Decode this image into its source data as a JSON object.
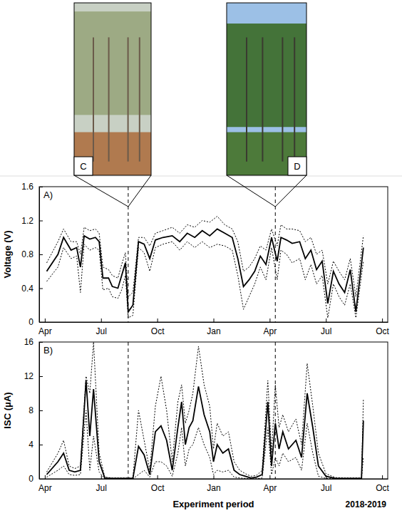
{
  "photos": [
    {
      "label": "C"
    },
    {
      "label": "D"
    }
  ],
  "chart_data": [
    {
      "type": "line",
      "title": "A)",
      "ylabel": "Voltage (V)",
      "xlim": [
        -0.3,
        18.3
      ],
      "xticks": [
        {
          "value": 0,
          "label": "Apr"
        },
        {
          "value": 3,
          "label": "Jul"
        },
        {
          "value": 6,
          "label": "Oct"
        },
        {
          "value": 9,
          "label": "Jan"
        },
        {
          "value": 12,
          "label": "Apr"
        },
        {
          "value": 15,
          "label": "Jul"
        },
        {
          "value": 18,
          "label": "Oct"
        }
      ],
      "ylim": [
        0,
        1.6
      ],
      "yticks": [
        0,
        0.4,
        0.8,
        1.2,
        1.6
      ],
      "vlines": [
        4.45,
        12.3
      ],
      "x": [
        0.1,
        0.7,
        1.0,
        1.4,
        1.7,
        1.9,
        2.1,
        2.4,
        2.7,
        2.9,
        3.1,
        3.4,
        3.6,
        3.9,
        4.1,
        4.3,
        4.45,
        4.7,
        5.0,
        5.3,
        5.6,
        5.9,
        6.3,
        6.8,
        7.2,
        7.6,
        8.0,
        8.4,
        8.8,
        9.2,
        9.6,
        10.0,
        10.3,
        10.6,
        10.9,
        11.2,
        11.5,
        11.8,
        12.1,
        12.4,
        12.6,
        12.9,
        13.2,
        13.6,
        13.9,
        14.2,
        14.5,
        14.8,
        15.1,
        15.4,
        15.7,
        16.0,
        16.3,
        16.6,
        17.0
      ],
      "series": [
        {
          "color": "#000000",
          "line_style": "solid",
          "values": [
            0.6,
            0.8,
            1.0,
            0.85,
            0.88,
            0.65,
            1.02,
            0.98,
            1.0,
            0.95,
            0.52,
            0.52,
            0.42,
            0.4,
            0.55,
            0.7,
            0.12,
            0.2,
            0.95,
            0.92,
            0.75,
            0.97,
            1.0,
            1.02,
            0.95,
            1.05,
            1.0,
            1.08,
            1.02,
            1.1,
            1.05,
            1.0,
            0.75,
            0.42,
            0.5,
            0.6,
            0.78,
            0.68,
            1.0,
            0.72,
            1.0,
            0.97,
            0.93,
            0.95,
            0.75,
            0.85,
            0.62,
            0.72,
            0.22,
            0.6,
            0.45,
            0.35,
            0.62,
            0.12,
            0.88
          ]
        },
        {
          "color": "#000000",
          "line_style": "dotted",
          "values": [
            0.7,
            0.95,
            1.1,
            0.95,
            0.95,
            0.8,
            1.12,
            1.08,
            1.1,
            1.05,
            0.65,
            0.62,
            0.55,
            0.52,
            0.68,
            0.82,
            0.3,
            0.35,
            1.0,
            1.0,
            0.9,
            1.05,
            1.08,
            1.12,
            1.05,
            1.15,
            1.12,
            1.2,
            1.18,
            1.25,
            1.15,
            1.1,
            0.95,
            0.6,
            0.65,
            0.75,
            0.9,
            0.85,
            1.1,
            0.9,
            1.15,
            1.1,
            1.1,
            1.08,
            0.95,
            1.0,
            0.8,
            0.85,
            0.45,
            0.72,
            0.6,
            0.5,
            0.75,
            0.3,
            1.02
          ]
        },
        {
          "color": "#000000",
          "line_style": "dotted",
          "values": [
            0.48,
            0.65,
            0.88,
            0.75,
            0.78,
            0.35,
            0.92,
            0.85,
            0.88,
            0.85,
            0.38,
            0.4,
            0.3,
            0.28,
            0.38,
            0.55,
            0.05,
            0.08,
            0.88,
            0.82,
            0.6,
            0.88,
            0.92,
            0.95,
            0.85,
            0.95,
            0.88,
            0.95,
            0.88,
            0.92,
            0.9,
            0.85,
            0.55,
            0.15,
            0.3,
            0.45,
            0.65,
            0.5,
            0.88,
            0.5,
            0.85,
            0.8,
            0.7,
            0.75,
            0.5,
            0.68,
            0.45,
            0.55,
            0.05,
            0.45,
            0.3,
            0.2,
            0.45,
            0.05,
            0.72
          ]
        }
      ]
    },
    {
      "type": "line",
      "title": "B)",
      "ylabel": "ISC (μA)",
      "xlabel": "Experiment period",
      "annotations": [
        {
          "text": "2018-2019"
        }
      ],
      "xlim": [
        -0.3,
        18.3
      ],
      "xticks": [
        {
          "value": 0,
          "label": "Apr"
        },
        {
          "value": 3,
          "label": "Jul"
        },
        {
          "value": 6,
          "label": "Oct"
        },
        {
          "value": 9,
          "label": "Jan"
        },
        {
          "value": 12,
          "label": "Apr"
        },
        {
          "value": 15,
          "label": "Jul"
        },
        {
          "value": 18,
          "label": "Oct"
        }
      ],
      "ylim": [
        0,
        16
      ],
      "yticks": [
        0,
        4,
        8,
        12,
        16
      ],
      "vlines": [
        4.45,
        12.3
      ],
      "x": [
        0.1,
        0.7,
        1.0,
        1.3,
        1.6,
        1.9,
        2.2,
        2.4,
        2.6,
        2.9,
        3.2,
        3.6,
        4.0,
        4.4,
        4.7,
        5.0,
        5.3,
        5.6,
        5.9,
        6.2,
        6.5,
        6.8,
        7.1,
        7.3,
        7.5,
        7.7,
        7.9,
        8.2,
        8.5,
        8.8,
        9.0,
        9.2,
        9.5,
        9.8,
        10.1,
        10.4,
        10.7,
        11.0,
        11.3,
        11.6,
        11.9,
        12.1,
        12.3,
        12.5,
        12.7,
        13.0,
        13.4,
        13.7,
        14.0,
        14.3,
        14.6,
        15.0,
        15.5,
        16.0,
        16.5,
        16.9,
        17.0
      ],
      "series": [
        {
          "color": "#000000",
          "line_style": "solid",
          "values": [
            0.5,
            2.0,
            3.0,
            1.0,
            0.8,
            1.0,
            11.5,
            5.0,
            10.5,
            2.0,
            0.1,
            0.05,
            0.05,
            0.05,
            0.05,
            3.8,
            2.8,
            0.5,
            5.5,
            6.2,
            4.5,
            1.0,
            6.0,
            9.0,
            4.0,
            6.0,
            6.8,
            10.8,
            7.5,
            5.5,
            2.0,
            4.0,
            3.0,
            3.5,
            1.0,
            0.5,
            0.3,
            0.1,
            0.2,
            0.5,
            9.0,
            1.5,
            6.5,
            3.5,
            5.5,
            3.5,
            4.5,
            2.5,
            10.0,
            6.0,
            1.5,
            0.3,
            0.05,
            0.05,
            0.05,
            0.05,
            6.8
          ]
        },
        {
          "color": "#000000",
          "line_style": "dotted",
          "values": [
            0.8,
            3.0,
            4.5,
            1.5,
            1.2,
            1.5,
            12.0,
            10.0,
            16.0,
            3.0,
            0.2,
            0.1,
            0.1,
            0.1,
            0.1,
            8.0,
            4.5,
            1.0,
            8.5,
            12.0,
            8.0,
            2.0,
            9.0,
            11.0,
            6.5,
            8.0,
            10.0,
            15.5,
            11.0,
            8.5,
            3.5,
            6.5,
            5.0,
            5.5,
            2.0,
            1.0,
            0.6,
            0.3,
            0.4,
            1.0,
            11.5,
            3.0,
            11.0,
            6.0,
            7.5,
            5.5,
            7.0,
            4.0,
            13.5,
            8.5,
            3.0,
            0.6,
            0.15,
            0.1,
            0.1,
            0.1,
            9.3
          ]
        },
        {
          "color": "#000000",
          "line_style": "dotted",
          "values": [
            0.2,
            1.0,
            1.5,
            0.5,
            0.4,
            0.5,
            8.0,
            1.0,
            5.0,
            0.8,
            0,
            0,
            0,
            0,
            0,
            0.5,
            1.0,
            0.2,
            2.0,
            2.0,
            1.5,
            0.3,
            3.0,
            6.0,
            1.5,
            3.5,
            4.0,
            6.0,
            4.0,
            2.5,
            0.5,
            1.0,
            0.8,
            1.0,
            0.2,
            0.1,
            0.05,
            0,
            0,
            0.1,
            6.0,
            0.5,
            2.5,
            1.5,
            3.0,
            2.0,
            2.5,
            1.0,
            6.5,
            3.0,
            0.3,
            0.05,
            0,
            0,
            0,
            0,
            2.5
          ]
        }
      ]
    }
  ]
}
